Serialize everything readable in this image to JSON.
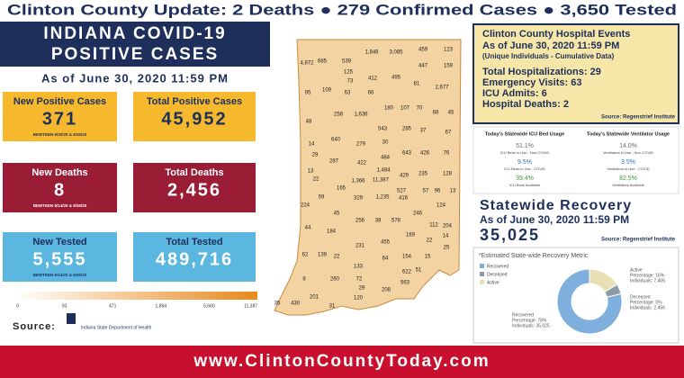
{
  "banner": "Clinton County Update: 2 Deaths ● 279 Confirmed Cases ● 3,650 Tested",
  "left": {
    "title_line1": "INDIANA COVID-19",
    "title_line2": "POSITIVE CASES",
    "as_of": "As of June 30, 2020 11:59 PM",
    "tiles": [
      {
        "label": "New Positive Cases",
        "value": "371",
        "note": "BEWTEEN 6/30/20 & 6/30/20"
      },
      {
        "label": "Total Positive Cases",
        "value": "45,952"
      },
      {
        "label": "New Deaths",
        "value": "8",
        "note": "BEWTEEN 6/14/20 & 6/30/20"
      },
      {
        "label": "Total Deaths",
        "value": "2,456"
      },
      {
        "label": "New Tested",
        "value": "5,555",
        "note": "BEWTEEN 6/14/20 & 6/30/20"
      },
      {
        "label": "Total Tested",
        "value": "489,716"
      }
    ],
    "source_label": "Source:",
    "source_org": "Indiana State Department of Health"
  },
  "map": {
    "legend_ticks": [
      "0",
      "93",
      "471",
      "1,894",
      "5,660",
      "11,387"
    ],
    "counties": [
      "4,872",
      "685",
      "539",
      "1,849",
      "3,085",
      "459",
      "123",
      "125",
      "447",
      "159",
      "73",
      "412",
      "495",
      "81",
      "2,677",
      "95",
      "109",
      "63",
      "66",
      "258",
      "1,636",
      "180",
      "107",
      "70",
      "68",
      "45",
      "48",
      "640",
      "543",
      "285",
      "37",
      "67",
      "14",
      "279",
      "30",
      "29",
      "484",
      "643",
      "426",
      "76",
      "287",
      "422",
      "1,484",
      "13",
      "22",
      "165",
      "1,366",
      "11,387",
      "429",
      "235",
      "128",
      "527",
      "57",
      "96",
      "13",
      "224",
      "59",
      "329",
      "1,235",
      "416",
      "246",
      "124",
      "45",
      "256",
      "38",
      "578",
      "112",
      "204",
      "44",
      "184",
      "231",
      "455",
      "169",
      "22",
      "14",
      "25",
      "62",
      "139",
      "22",
      "64",
      "154",
      "15",
      "8",
      "133",
      "51",
      "622",
      "260",
      "29",
      "208",
      "563",
      "35",
      "430",
      "201",
      "120",
      "31",
      "72"
    ]
  },
  "hospital": {
    "title": "Clinton County Hospital Events",
    "as_of": "As of June 30, 2020 11:59 PM",
    "subtitle": "(Unique Individuals - Cumulative Data)",
    "lines": [
      "Total Hospitalizations: 29",
      "Emergency Visits: 63",
      "ICU Admits: 6",
      "Hospital Deaths: 2"
    ],
    "source": "Source: Regenstrief Institute"
  },
  "usage": [
    {
      "heading": "Today's Statewide ICU Bed Usage",
      "items": [
        {
          "value": "51.1%",
          "label": "ICU Beds in Use - Non-COVID"
        },
        {
          "value": "9.5%",
          "label": "ICU Beds in Use - COVID"
        },
        {
          "value": "39.4%",
          "label": "ICU Beds Available"
        }
      ]
    },
    {
      "heading": "Today's Statewide Ventilator Usage",
      "items": [
        {
          "value": "14.0%",
          "label": "Ventilators in Use - Non-COVID"
        },
        {
          "value": "3.5%",
          "label": "Ventilators in Use - COVID"
        },
        {
          "value": "82.5%",
          "label": "Ventilators Available"
        }
      ]
    }
  ],
  "recovery": {
    "title": "Statewide Recovery",
    "as_of": "As of June 30, 2020 11:59 PM",
    "value": "35,025",
    "source": "Source: Regenstrief Institute"
  },
  "recovery_chart": {
    "title": "*Estimated State-wide Recovery Metric",
    "segments": [
      {
        "name": "Recovered",
        "color": "#7fb0dd",
        "value": 78,
        "label": "Percentage: 78%",
        "individuals": "Individuals: 35,025"
      },
      {
        "name": "Deceased",
        "color": "#8c9aa6",
        "value": 5,
        "label": "Percentage: 5%",
        "individuals": "Individuals: 2,456"
      },
      {
        "name": "Active",
        "color": "#e9dfb4",
        "value": 16,
        "label": "Percentage: 16%",
        "individuals": "Individuals: 7,405"
      }
    ]
  },
  "footer": "www.ClintonCountyToday.com"
}
